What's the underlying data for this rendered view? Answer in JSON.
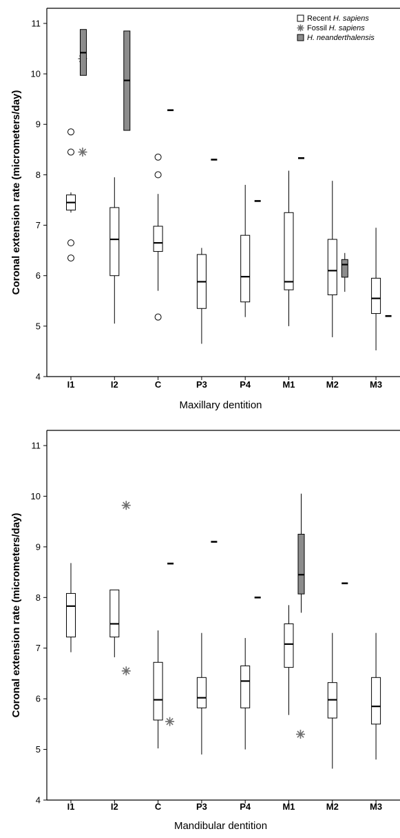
{
  "legend": [
    {
      "prefix": "Recent ",
      "species": "H. sapiens",
      "marker": "open-box"
    },
    {
      "prefix": "Fossil ",
      "species": "H. sapiens",
      "marker": "asterisk"
    },
    {
      "prefix": "",
      "species": "H. neanderthalensis",
      "marker": "gray-box"
    }
  ],
  "colors": {
    "recent_fill": "#ffffff",
    "neanderthal_fill": "#8c8c8c",
    "fossil_marker": "#6e6e6e",
    "stroke": "#000000"
  },
  "chart_data": [
    {
      "type": "box",
      "panel": "top",
      "xlabel": "Maxillary dentition",
      "ylabel": "Coronal extension rate (micrometers/day)",
      "ylim": [
        4,
        11.3
      ],
      "yticks": [
        4,
        5,
        6,
        7,
        8,
        9,
        10,
        11
      ],
      "categories": [
        "I1",
        "I2",
        "C",
        "P3",
        "P4",
        "M1",
        "M2",
        "M3"
      ],
      "recent_h_sapiens": [
        {
          "category": "I1",
          "min": 7.25,
          "q1": 7.3,
          "median": 7.45,
          "q3": 7.6,
          "max": 7.65,
          "outliers": [
            8.85,
            8.45,
            6.65,
            6.35
          ]
        },
        {
          "category": "I2",
          "min": 5.05,
          "q1": 6.0,
          "median": 6.72,
          "q3": 7.35,
          "max": 7.95,
          "outliers": []
        },
        {
          "category": "C",
          "min": 5.7,
          "q1": 6.48,
          "median": 6.65,
          "q3": 6.98,
          "max": 7.62,
          "outliers": [
            8.35,
            8.0,
            5.18
          ]
        },
        {
          "category": "P3",
          "min": 4.65,
          "q1": 5.35,
          "median": 5.88,
          "q3": 6.42,
          "max": 6.55,
          "outliers": []
        },
        {
          "category": "P4",
          "min": 5.18,
          "q1": 5.48,
          "median": 5.98,
          "q3": 6.8,
          "max": 7.8,
          "outliers": []
        },
        {
          "category": "M1",
          "min": 5.0,
          "q1": 5.72,
          "median": 5.88,
          "q3": 7.25,
          "max": 8.08,
          "outliers": []
        },
        {
          "category": "M2",
          "min": 4.78,
          "q1": 5.62,
          "median": 6.1,
          "q3": 6.72,
          "max": 7.88,
          "outliers": []
        },
        {
          "category": "M3",
          "min": 4.52,
          "q1": 5.25,
          "median": 5.55,
          "q3": 5.95,
          "max": 6.95,
          "outliers": []
        }
      ],
      "fossil_h_sapiens": [
        {
          "category": "I1",
          "value": 10.3
        },
        {
          "category": "I1",
          "value": 8.45
        }
      ],
      "h_neanderthalensis": [
        {
          "category": "I1",
          "q1": 9.97,
          "median": 10.42,
          "q3": 10.88
        },
        {
          "category": "I2",
          "q1": 8.88,
          "median": 9.87,
          "q3": 10.85
        },
        {
          "category": "C",
          "value": 9.28
        },
        {
          "category": "P3",
          "value": 8.3
        },
        {
          "category": "P4",
          "value": 7.48
        },
        {
          "category": "M1",
          "value": 8.33
        },
        {
          "category": "M2",
          "min": 5.68,
          "q1": 5.97,
          "median": 6.22,
          "q3": 6.32,
          "max": 6.45
        },
        {
          "category": "M3",
          "value": 5.2
        }
      ]
    },
    {
      "type": "box",
      "panel": "bottom",
      "xlabel": "Mandibular dentition",
      "ylabel": "Coronal extension rate (micrometers/day)",
      "ylim": [
        4,
        11.3
      ],
      "yticks": [
        4,
        5,
        6,
        7,
        8,
        9,
        10,
        11
      ],
      "categories": [
        "I1",
        "I2",
        "C",
        "P3",
        "P4",
        "M1",
        "M2",
        "M3"
      ],
      "recent_h_sapiens": [
        {
          "category": "I1",
          "min": 6.92,
          "q1": 7.22,
          "median": 7.83,
          "q3": 8.08,
          "max": 8.68,
          "outliers": []
        },
        {
          "category": "I2",
          "min": 6.82,
          "q1": 7.22,
          "median": 7.48,
          "q3": 8.15,
          "max": 8.15,
          "outliers": []
        },
        {
          "category": "C",
          "min": 5.02,
          "q1": 5.58,
          "median": 5.98,
          "q3": 6.72,
          "max": 7.35,
          "outliers": []
        },
        {
          "category": "P3",
          "min": 4.9,
          "q1": 5.82,
          "median": 6.02,
          "q3": 6.42,
          "max": 7.3,
          "outliers": []
        },
        {
          "category": "P4",
          "min": 5.0,
          "q1": 5.82,
          "median": 6.35,
          "q3": 6.65,
          "max": 7.2,
          "outliers": []
        },
        {
          "category": "M1",
          "min": 5.68,
          "q1": 6.62,
          "median": 7.08,
          "q3": 7.48,
          "max": 7.85,
          "outliers": []
        },
        {
          "category": "M2",
          "min": 4.62,
          "q1": 5.62,
          "median": 5.98,
          "q3": 6.32,
          "max": 7.3,
          "outliers": []
        },
        {
          "category": "M3",
          "min": 4.8,
          "q1": 5.5,
          "median": 5.85,
          "q3": 6.42,
          "max": 7.3,
          "outliers": []
        }
      ],
      "fossil_h_sapiens": [
        {
          "category": "I2",
          "value": 9.82
        },
        {
          "category": "I2",
          "value": 6.55
        },
        {
          "category": "C",
          "value": 5.55
        },
        {
          "category": "M1",
          "value": 5.3
        }
      ],
      "h_neanderthalensis": [
        {
          "category": "C",
          "value": 8.67
        },
        {
          "category": "P3",
          "value": 9.1
        },
        {
          "category": "P4",
          "value": 8.0
        },
        {
          "category": "M1",
          "min": 7.7,
          "q1": 8.07,
          "median": 8.45,
          "q3": 9.25,
          "max": 10.05
        },
        {
          "category": "M2",
          "value": 8.28
        }
      ]
    }
  ]
}
